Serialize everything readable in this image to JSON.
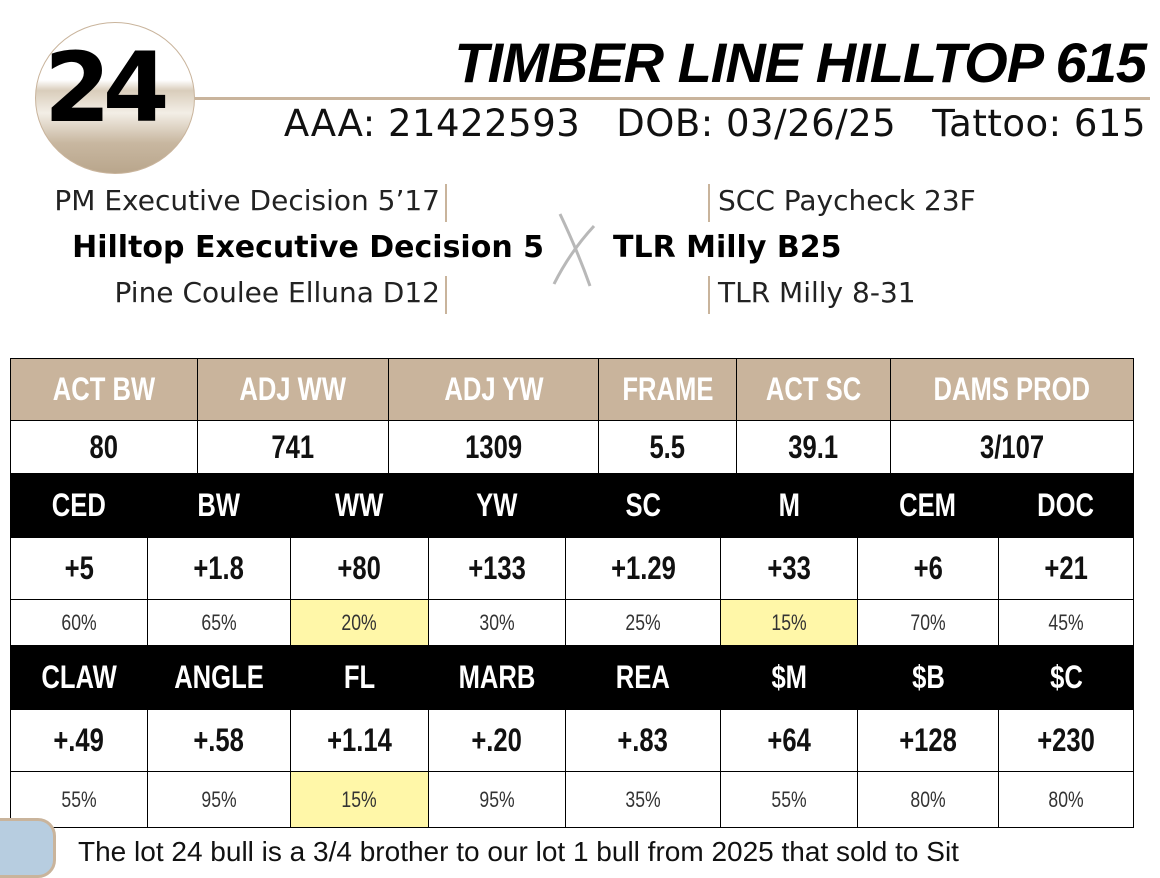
{
  "lot": {
    "number": "24",
    "name": "TIMBER LINE HILLTOP 615",
    "aaa": "AAA: 21422593",
    "dob": "DOB: 03/26/25",
    "tattoo": "Tattoo: 615"
  },
  "pedigree": {
    "sire_sire": "PM Executive Decision 5’17",
    "sire": "Hilltop Executive Decision 5",
    "sire_dam": "Pine Coulee Elluna D12",
    "dam_sire": "SCC Paycheck 23F",
    "dam": "TLR Milly B25",
    "dam_dam": "TLR Milly 8-31"
  },
  "actuals": {
    "headers": [
      "ACT BW",
      "ADJ WW",
      "ADJ YW",
      "FRAME",
      "ACT SC",
      "DAMS PROD"
    ],
    "values": [
      "80",
      "741",
      "1309",
      "5.5",
      "39.1",
      "3/107"
    ]
  },
  "epd1": {
    "headers": [
      "CED",
      "BW",
      "WW",
      "YW",
      "SC",
      "M",
      "CEM",
      "DOC"
    ],
    "values": [
      "+5",
      "+1.8",
      "+80",
      "+133",
      "+1.29",
      "+33",
      "+6",
      "+21"
    ],
    "percentiles": [
      "60%",
      "65%",
      "20%",
      "30%",
      "25%",
      "15%",
      "70%",
      "45%"
    ],
    "highlighted": [
      false,
      false,
      true,
      false,
      false,
      true,
      false,
      false
    ]
  },
  "epd2": {
    "headers": [
      "CLAW",
      "ANGLE",
      "FL",
      "MARB",
      "REA",
      "$M",
      "$B",
      "$C"
    ],
    "values": [
      "+.49",
      "+.58",
      "+1.14",
      "+.20",
      "+.83",
      "+64",
      "+128",
      "+230"
    ],
    "percentiles": [
      "55%",
      "95%",
      "15%",
      "95%",
      "35%",
      "55%",
      "80%",
      "80%"
    ],
    "highlighted": [
      false,
      false,
      true,
      false,
      false,
      false,
      false,
      false
    ]
  },
  "note": "The lot 24 bull is a 3/4 brother to our lot 1 bull from 2025 that sold to Sit",
  "colors": {
    "tan": "#c9b49c",
    "highlight": "#fff7a8",
    "black": "#000000"
  }
}
